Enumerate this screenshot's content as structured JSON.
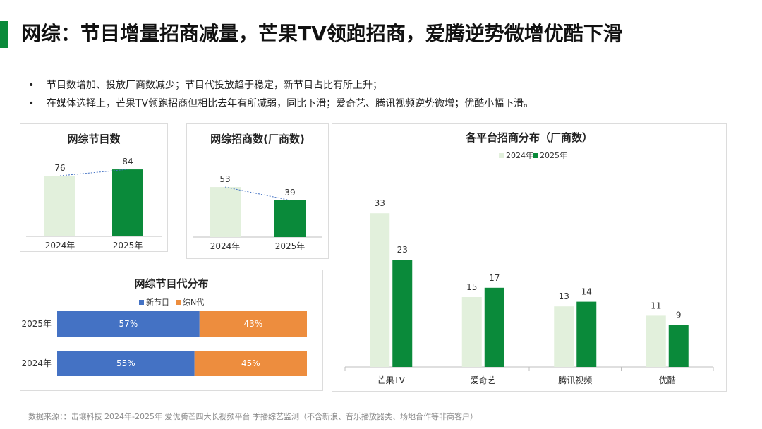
{
  "header": {
    "title": "网综：节目增量招商减量，芒果TV领跑招商，爱腾逆势微增优酷下滑",
    "accent_color": "#0a8a3a"
  },
  "bullets": [
    {
      "marker": "•",
      "text": "节目数增加、投放厂商数减少；节目代投放趋于稳定，新节目占比有所上升；"
    },
    {
      "marker": "•",
      "text": "在媒体选择上，芒果TV领跑招商但相比去年有所减弱，同比下滑；爱奇艺、腾讯视频逆势微增；优酷小幅下滑。"
    }
  ],
  "colors": {
    "light_green": "#e2f0dc",
    "dark_green": "#0a8a3a",
    "blue": "#4472c4",
    "orange": "#ed8d3e"
  },
  "chart_data": [
    {
      "type": "bar",
      "title": "网综节目数",
      "categories": [
        "2024年",
        "2025年"
      ],
      "values": [
        76,
        84
      ],
      "colors": [
        "#e2f0dc",
        "#0a8a3a"
      ],
      "ylim": [
        0,
        100
      ],
      "trend_line": "dotted"
    },
    {
      "type": "bar",
      "title": "网综招商数(厂商数)",
      "categories": [
        "2024年",
        "2025年"
      ],
      "values": [
        53,
        39
      ],
      "colors": [
        "#e2f0dc",
        "#0a8a3a"
      ],
      "ylim": [
        0,
        65
      ],
      "trend_line": "dotted"
    },
    {
      "type": "bar",
      "orientation": "horizontal",
      "stacked": true,
      "title": "网综节目代分布",
      "categories": [
        "2025年",
        "2024年"
      ],
      "series": [
        {
          "name": "新节目",
          "values": [
            57,
            55
          ],
          "labels": [
            "57%",
            "55%"
          ],
          "color": "#4472c4"
        },
        {
          "name": "综N代",
          "values": [
            43,
            45
          ],
          "labels": [
            "43%",
            "45%"
          ],
          "color": "#ed8d3e"
        }
      ],
      "xlim": [
        0,
        100
      ],
      "legend": "top"
    },
    {
      "type": "bar",
      "title": "各平台招商分布（厂商数）",
      "categories": [
        "芒果TV",
        "爱奇艺",
        "腾讯视频",
        "优酷"
      ],
      "series": [
        {
          "name": "2024年",
          "values": [
            33,
            15,
            13,
            11
          ],
          "color": "#e2f0dc"
        },
        {
          "name": "2025年",
          "values": [
            23,
            17,
            14,
            9
          ],
          "color": "#0a8a3a"
        }
      ],
      "ylim": [
        0,
        40
      ],
      "legend": "top"
    }
  ],
  "footer": {
    "source": "数据来源：：击壤科技 2024年-2025年 爱优腾芒四大长视频平台 季播综艺监测（不含新浪、音乐播放器类、场地合作等非商客户）"
  }
}
